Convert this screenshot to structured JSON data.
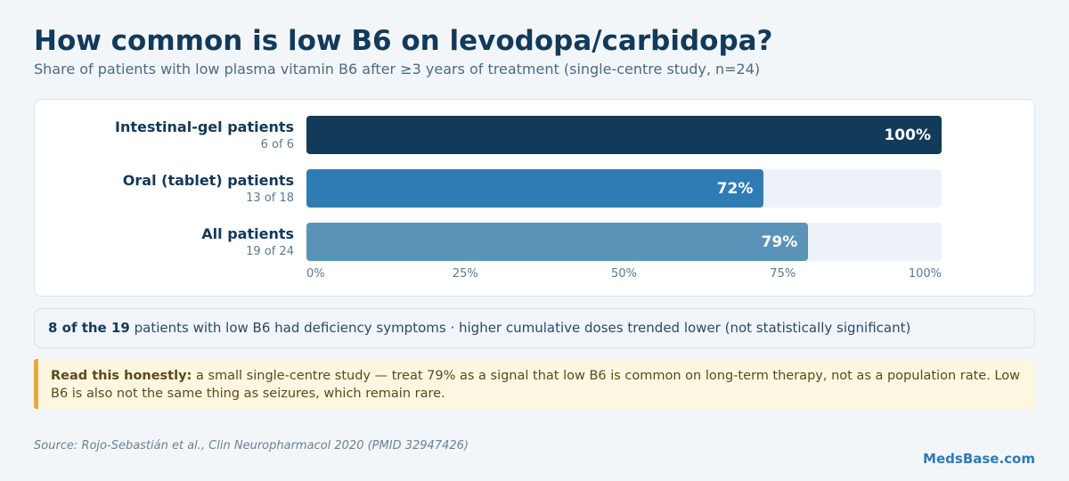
{
  "header": {
    "title": "How common is low B6 on levodopa/carbidopa?",
    "subtitle": "Share of patients with low plasma vitamin B6 after ≥3 years of treatment (single-centre study, n=24)"
  },
  "chart_data": {
    "type": "bar",
    "orientation": "horizontal",
    "categories": [
      "Intestinal-gel patients",
      "Oral (tablet) patients",
      "All patients"
    ],
    "sublabels": [
      "6 of 6",
      "13 of 18",
      "19 of 24"
    ],
    "values": [
      100,
      72,
      79
    ],
    "value_labels": [
      "100%",
      "72%",
      "79%"
    ],
    "colors": [
      "#123a59",
      "#2f7cb4",
      "#5b93b8"
    ],
    "xlim": [
      0,
      100
    ],
    "ticks": [
      "0%",
      "25%",
      "50%",
      "75%",
      "100%"
    ],
    "grid": false,
    "legend": "none"
  },
  "note": {
    "bold": "8 of the 19",
    "text": " patients with low B6 had deficiency symptoms · higher cumulative doses trended lower (not statistically significant)"
  },
  "warning": {
    "bold": "Read this honestly:",
    "text": " a small single-centre study — treat 79% as a signal that low B6 is common on long-term therapy, not as a population rate. Low B6 is also not the same thing as seizures, which remain rare."
  },
  "footer": {
    "source": "Source: Rojo-Sebastián et al., Clin Neuropharmacol 2020 (PMID 32947426)",
    "brand": "MedsBase.com"
  }
}
